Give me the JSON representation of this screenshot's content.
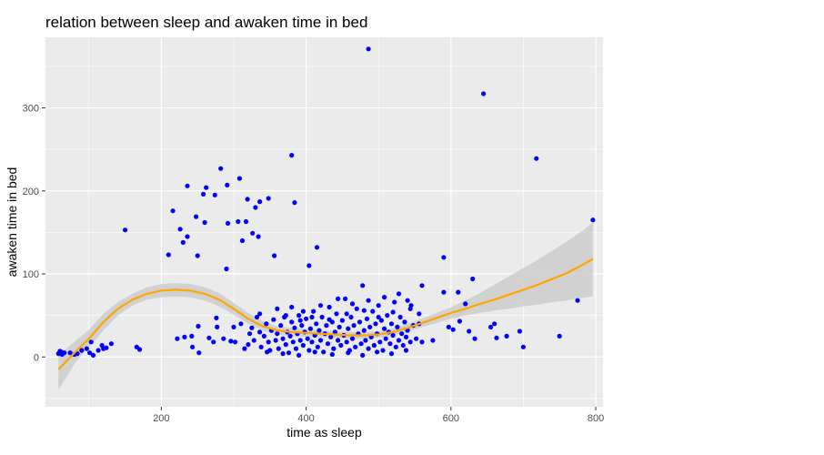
{
  "chart_data": {
    "type": "scatter",
    "title": "relation between sleep and awaken time in bed",
    "xlabel": "time as sleep",
    "ylabel": "awaken time in bed",
    "xlim": [
      40,
      810
    ],
    "ylim": [
      -60,
      385
    ],
    "x_ticks": [
      200,
      400,
      600,
      800
    ],
    "y_ticks": [
      0,
      100,
      200,
      300
    ],
    "x_tick_labels": [
      "200",
      "400",
      "600",
      "800"
    ],
    "y_tick_labels": [
      "0",
      "100",
      "200",
      "300"
    ],
    "grid": true,
    "legend": "none",
    "colors": {
      "panel_background": "#ebebeb",
      "grid": "#ffffff",
      "points": "#0000ff",
      "smooth_line": "#ffa500",
      "confidence_band": "#cccccc"
    },
    "points": [
      [
        58,
        4
      ],
      [
        60,
        7
      ],
      [
        62,
        6
      ],
      [
        63,
        3
      ],
      [
        66,
        5
      ],
      [
        74,
        5
      ],
      [
        80,
        3
      ],
      [
        84,
        4
      ],
      [
        90,
        8
      ],
      [
        97,
        10
      ],
      [
        101,
        5
      ],
      [
        103,
        18
      ],
      [
        106,
        2
      ],
      [
        113,
        8
      ],
      [
        118,
        14
      ],
      [
        120,
        10
      ],
      [
        124,
        11
      ],
      [
        131,
        16
      ],
      [
        150,
        153
      ],
      [
        166,
        12
      ],
      [
        170,
        9
      ],
      [
        210,
        123
      ],
      [
        216,
        176
      ],
      [
        222,
        22
      ],
      [
        226,
        154
      ],
      [
        230,
        138
      ],
      [
        232,
        24
      ],
      [
        236,
        206
      ],
      [
        236,
        145
      ],
      [
        242,
        25
      ],
      [
        243,
        12
      ],
      [
        248,
        169
      ],
      [
        250,
        122
      ],
      [
        251,
        37
      ],
      [
        252,
        5
      ],
      [
        258,
        196
      ],
      [
        260,
        162
      ],
      [
        262,
        204
      ],
      [
        266,
        23
      ],
      [
        272,
        18
      ],
      [
        274,
        195
      ],
      [
        276,
        47
      ],
      [
        277,
        36
      ],
      [
        282,
        227
      ],
      [
        286,
        22
      ],
      [
        290,
        106
      ],
      [
        291,
        207
      ],
      [
        292,
        161
      ],
      [
        296,
        19
      ],
      [
        300,
        36
      ],
      [
        302,
        18
      ],
      [
        306,
        163
      ],
      [
        308,
        215
      ],
      [
        312,
        140
      ],
      [
        317,
        163
      ],
      [
        319,
        190
      ],
      [
        322,
        28
      ],
      [
        326,
        149
      ],
      [
        330,
        180
      ],
      [
        334,
        145
      ],
      [
        336,
        187
      ],
      [
        348,
        191
      ],
      [
        356,
        122
      ],
      [
        380,
        243
      ],
      [
        384,
        186
      ],
      [
        404,
        110
      ],
      [
        415,
        132
      ],
      [
        486,
        371
      ],
      [
        590,
        120
      ],
      [
        610,
        78
      ],
      [
        630,
        94
      ],
      [
        645,
        317
      ],
      [
        718,
        239
      ],
      [
        775,
        68
      ],
      [
        796,
        165
      ],
      [
        560,
        18
      ],
      [
        575,
        20
      ],
      [
        597,
        36
      ],
      [
        603,
        33
      ],
      [
        612,
        43
      ],
      [
        620,
        64
      ],
      [
        625,
        31
      ],
      [
        633,
        22
      ],
      [
        655,
        36
      ],
      [
        660,
        40
      ],
      [
        663,
        23
      ],
      [
        677,
        25
      ],
      [
        695,
        31
      ],
      [
        700,
        12
      ],
      [
        750,
        25
      ],
      [
        590,
        78
      ],
      [
        540,
        68
      ],
      [
        545,
        62
      ],
      [
        310,
        40
      ],
      [
        315,
        10
      ],
      [
        320,
        15
      ],
      [
        325,
        35
      ],
      [
        328,
        20
      ],
      [
        332,
        48
      ],
      [
        336,
        30
      ],
      [
        338,
        12
      ],
      [
        342,
        25
      ],
      [
        345,
        40
      ],
      [
        348,
        18
      ],
      [
        350,
        8
      ],
      [
        352,
        32
      ],
      [
        355,
        45
      ],
      [
        358,
        20
      ],
      [
        360,
        28
      ],
      [
        362,
        10
      ],
      [
        365,
        38
      ],
      [
        368,
        22
      ],
      [
        370,
        48
      ],
      [
        372,
        15
      ],
      [
        374,
        30
      ],
      [
        376,
        5
      ],
      [
        378,
        25
      ],
      [
        380,
        42
      ],
      [
        382,
        18
      ],
      [
        384,
        35
      ],
      [
        386,
        10
      ],
      [
        388,
        28
      ],
      [
        390,
        50
      ],
      [
        392,
        20
      ],
      [
        394,
        38
      ],
      [
        396,
        14
      ],
      [
        398,
        30
      ],
      [
        400,
        46
      ],
      [
        402,
        22
      ],
      [
        404,
        8
      ],
      [
        406,
        34
      ],
      [
        408,
        18
      ],
      [
        410,
        55
      ],
      [
        412,
        26
      ],
      [
        414,
        40
      ],
      [
        416,
        12
      ],
      [
        418,
        32
      ],
      [
        420,
        20
      ],
      [
        422,
        48
      ],
      [
        424,
        6
      ],
      [
        426,
        28
      ],
      [
        428,
        38
      ],
      [
        430,
        16
      ],
      [
        432,
        60
      ],
      [
        434,
        24
      ],
      [
        436,
        42
      ],
      [
        438,
        10
      ],
      [
        440,
        30
      ],
      [
        442,
        52
      ],
      [
        444,
        20
      ],
      [
        446,
        36
      ],
      [
        448,
        14
      ],
      [
        450,
        44
      ],
      [
        452,
        26
      ],
      [
        454,
        70
      ],
      [
        456,
        18
      ],
      [
        458,
        34
      ],
      [
        460,
        8
      ],
      [
        462,
        48
      ],
      [
        464,
        22
      ],
      [
        466,
        38
      ],
      [
        468,
        12
      ],
      [
        470,
        58
      ],
      [
        472,
        28
      ],
      [
        474,
        42
      ],
      [
        476,
        16
      ],
      [
        478,
        86
      ],
      [
        480,
        32
      ],
      [
        482,
        20
      ],
      [
        484,
        46
      ],
      [
        486,
        10
      ],
      [
        488,
        36
      ],
      [
        490,
        24
      ],
      [
        492,
        55
      ],
      [
        494,
        14
      ],
      [
        496,
        40
      ],
      [
        498,
        28
      ],
      [
        500,
        62
      ],
      [
        502,
        18
      ],
      [
        504,
        44
      ],
      [
        506,
        8
      ],
      [
        508,
        34
      ],
      [
        510,
        22
      ],
      [
        512,
        50
      ],
      [
        514,
        30
      ],
      [
        516,
        16
      ],
      [
        518,
        40
      ],
      [
        520,
        26
      ],
      [
        522,
        66
      ],
      [
        524,
        12
      ],
      [
        526,
        36
      ],
      [
        528,
        20
      ],
      [
        530,
        48
      ],
      [
        532,
        28
      ],
      [
        534,
        14
      ],
      [
        536,
        42
      ],
      [
        538,
        24
      ],
      [
        540,
        32
      ],
      [
        544,
        18
      ],
      [
        548,
        38
      ],
      [
        552,
        22
      ],
      [
        556,
        40
      ],
      [
        560,
        86
      ],
      [
        336,
        52
      ],
      [
        360,
        58
      ],
      [
        380,
        60
      ],
      [
        396,
        55
      ],
      [
        420,
        62
      ],
      [
        444,
        70
      ],
      [
        464,
        64
      ],
      [
        486,
        68
      ],
      [
        508,
        72
      ],
      [
        528,
        76
      ],
      [
        372,
        50
      ],
      [
        408,
        48
      ],
      [
        432,
        45
      ],
      [
        456,
        52
      ],
      [
        480,
        56
      ],
      [
        500,
        48
      ],
      [
        520,
        54
      ],
      [
        544,
        58
      ],
      [
        556,
        52
      ],
      [
        392,
        44
      ],
      [
        346,
        6
      ],
      [
        368,
        4
      ],
      [
        390,
        2
      ],
      [
        412,
        6
      ],
      [
        436,
        3
      ],
      [
        458,
        5
      ],
      [
        478,
        2
      ],
      [
        498,
        6
      ],
      [
        518,
        4
      ],
      [
        538,
        8
      ]
    ],
    "smooth_fit": [
      [
        58,
        -15
      ],
      [
        80,
        5
      ],
      [
        100,
        22
      ],
      [
        120,
        42
      ],
      [
        140,
        58
      ],
      [
        160,
        69
      ],
      [
        180,
        76
      ],
      [
        200,
        80
      ],
      [
        220,
        81
      ],
      [
        240,
        80
      ],
      [
        260,
        76
      ],
      [
        280,
        69
      ],
      [
        300,
        58
      ],
      [
        320,
        46
      ],
      [
        340,
        37
      ],
      [
        360,
        32
      ],
      [
        380,
        30
      ],
      [
        400,
        29
      ],
      [
        420,
        28
      ],
      [
        440,
        27
      ],
      [
        460,
        26
      ],
      [
        480,
        26
      ],
      [
        500,
        27
      ],
      [
        520,
        30
      ],
      [
        540,
        35
      ],
      [
        560,
        41
      ],
      [
        580,
        47
      ],
      [
        600,
        53
      ],
      [
        620,
        58
      ],
      [
        640,
        64
      ],
      [
        660,
        69
      ],
      [
        680,
        75
      ],
      [
        700,
        81
      ],
      [
        720,
        87
      ],
      [
        740,
        94
      ],
      [
        760,
        101
      ],
      [
        780,
        110
      ],
      [
        796,
        118
      ]
    ],
    "confidence_upper": [
      [
        58,
        2
      ],
      [
        80,
        18
      ],
      [
        100,
        33
      ],
      [
        120,
        52
      ],
      [
        140,
        66
      ],
      [
        160,
        76
      ],
      [
        180,
        84
      ],
      [
        200,
        88
      ],
      [
        220,
        89
      ],
      [
        240,
        88
      ],
      [
        260,
        84
      ],
      [
        280,
        77
      ],
      [
        300,
        65
      ],
      [
        320,
        53
      ],
      [
        340,
        43
      ],
      [
        360,
        37
      ],
      [
        380,
        35
      ],
      [
        400,
        34
      ],
      [
        420,
        32
      ],
      [
        440,
        31
      ],
      [
        460,
        30
      ],
      [
        480,
        30
      ],
      [
        500,
        31
      ],
      [
        520,
        34
      ],
      [
        540,
        40
      ],
      [
        560,
        46
      ],
      [
        580,
        53
      ],
      [
        600,
        60
      ],
      [
        620,
        68
      ],
      [
        640,
        77
      ],
      [
        660,
        87
      ],
      [
        680,
        97
      ],
      [
        700,
        107
      ],
      [
        720,
        117
      ],
      [
        740,
        128
      ],
      [
        760,
        139
      ],
      [
        780,
        151
      ],
      [
        796,
        162
      ]
    ],
    "confidence_lower": [
      [
        58,
        -40
      ],
      [
        80,
        -8
      ],
      [
        100,
        12
      ],
      [
        120,
        32
      ],
      [
        140,
        50
      ],
      [
        160,
        62
      ],
      [
        180,
        69
      ],
      [
        200,
        72
      ],
      [
        220,
        73
      ],
      [
        240,
        72
      ],
      [
        260,
        68
      ],
      [
        280,
        61
      ],
      [
        300,
        51
      ],
      [
        320,
        40
      ],
      [
        340,
        32
      ],
      [
        360,
        27
      ],
      [
        380,
        25
      ],
      [
        400,
        24
      ],
      [
        420,
        24
      ],
      [
        440,
        23
      ],
      [
        460,
        22
      ],
      [
        480,
        22
      ],
      [
        500,
        23
      ],
      [
        520,
        26
      ],
      [
        540,
        30
      ],
      [
        560,
        36
      ],
      [
        580,
        41
      ],
      [
        600,
        46
      ],
      [
        620,
        50
      ],
      [
        640,
        53
      ],
      [
        660,
        56
      ],
      [
        680,
        58
      ],
      [
        700,
        61
      ],
      [
        720,
        63
      ],
      [
        740,
        66
      ],
      [
        760,
        68
      ],
      [
        780,
        71
      ],
      [
        796,
        73
      ]
    ]
  }
}
